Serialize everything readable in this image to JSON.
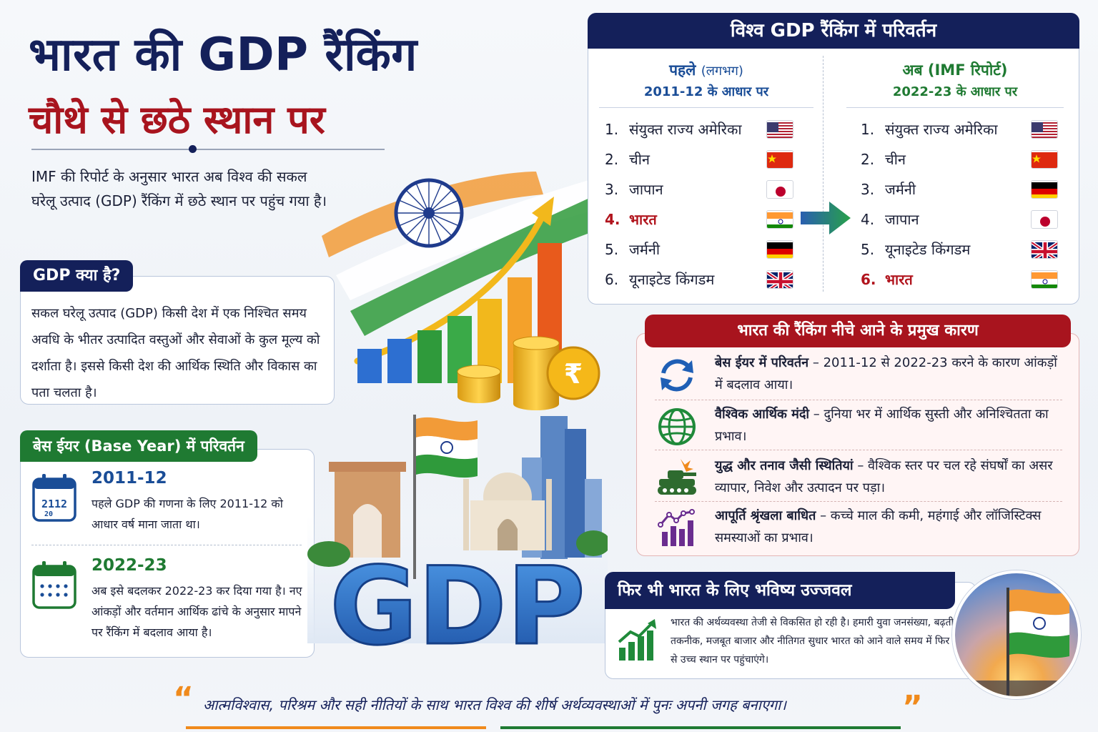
{
  "title": {
    "line1": "भारत की GDP रैंकिंग",
    "line2": "चौथे से छठे स्थान पर"
  },
  "intro": "IMF की रिपोर्ट के अनुसार भारत अब विश्व की सकल घरेलू उत्पाद (GDP) रैंकिंग में छठे स्थान पर पहुंच गया है।",
  "what": {
    "heading": "GDP क्या है?",
    "text": "सकल घरेलू उत्पाद (GDP) किसी देश में एक निश्चित समय अवधि के भीतर उत्पादित वस्तुओं और सेवाओं के कुल मूल्य को दर्शाता है। इससे किसी देश की आर्थिक स्थिति और विकास का पता चलता है।"
  },
  "base_year": {
    "heading": "बेस ईयर (Base Year) में परिवर्तन",
    "items": [
      {
        "year": "2011-12",
        "text": "पहले GDP की गणना के लिए 2011-12 को आधार वर्ष माना जाता था।",
        "icon": "calendar-icon",
        "color": "#1a4d97"
      },
      {
        "year": "2022-23",
        "text": "अब इसे बदलकर 2022-23 कर दिया गया है। नए आंकड़ों और वर्तमान आर्थिक ढांचे के अनुसार मापने पर रैंकिंग में बदलाव आया है।",
        "icon": "calendar-icon",
        "color": "#1f7a32"
      }
    ]
  },
  "illustration": {
    "gdp_text": "GDP",
    "rupee": "₹"
  },
  "ranking": {
    "heading": "विश्व GDP रैंकिंग में परिवर्तन",
    "before": {
      "label": "पहले",
      "qualifier": "(लगभग)",
      "subtitle": "2011-12 के आधार पर",
      "color": "#1a4d97",
      "rows": [
        {
          "num": "1.",
          "country": "संयुक्त राज्य अमेरिका",
          "flag": "usa"
        },
        {
          "num": "2.",
          "country": "चीन",
          "flag": "china"
        },
        {
          "num": "3.",
          "country": "जापान",
          "flag": "japan"
        },
        {
          "num": "4.",
          "country": "भारत",
          "flag": "india",
          "highlight": true
        },
        {
          "num": "5.",
          "country": "जर्मनी",
          "flag": "germany"
        },
        {
          "num": "6.",
          "country": "यूनाइटेड किंगडम",
          "flag": "uk"
        }
      ]
    },
    "after": {
      "label": "अब (IMF रिपोर्ट)",
      "subtitle": "2022-23 के आधार पर",
      "color": "#1f7a32",
      "rows": [
        {
          "num": "1.",
          "country": "संयुक्त राज्य अमेरिका",
          "flag": "usa"
        },
        {
          "num": "2.",
          "country": "चीन",
          "flag": "china"
        },
        {
          "num": "3.",
          "country": "जर्मनी",
          "flag": "germany"
        },
        {
          "num": "4.",
          "country": "जापान",
          "flag": "japan"
        },
        {
          "num": "5.",
          "country": "यूनाइटेड किंगडम",
          "flag": "uk"
        },
        {
          "num": "6.",
          "country": "भारत",
          "flag": "india",
          "highlight": true
        }
      ]
    }
  },
  "reasons": {
    "heading": "भारत की रैंकिंग नीचे आने के प्रमुख कारण",
    "items": [
      {
        "title": "बेस ईयर में परिवर्तन",
        "text": " – 2011-12 से 2022-23 करने के कारण आंकड़ों में बदलाव आया।",
        "icon": "refresh-icon"
      },
      {
        "title": "वैश्विक आर्थिक मंदी",
        "text": " – दुनिया भर में आर्थिक सुस्ती और अनिश्चितता का प्रभाव।",
        "icon": "globe-icon"
      },
      {
        "title": "युद्ध और तनाव जैसी स्थितियां",
        "text": " – वैश्विक स्तर पर चल रहे संघर्षों का असर व्यापार, निवेश और उत्पादन पर पड़ा।",
        "icon": "tank-icon"
      },
      {
        "title": "आपूर्ति श्रृंखला बाधित",
        "text": " – कच्चे माल की कमी, महंगाई और लॉजिस्टिक्स समस्याओं का प्रभाव।",
        "icon": "chart-up-icon"
      }
    ]
  },
  "future": {
    "heading": "फिर भी भारत के लिए भविष्य उज्जवल",
    "text": "भारत की अर्थव्यवस्था तेजी से विकसित हो रही है। हमारी युवा जनसंख्या, बढ़ती तकनीक, मजबूत बाजार और नीतिगत सुधार भारत को आने वाले समय में फिर से उच्च स्थान पर पहुंचाएंगे।",
    "icon": "growth-chart-icon"
  },
  "quote": {
    "open": "“",
    "text": "आत्मविश्वास, परिश्रम और सही नीतियों के साथ भारत विश्व की शीर्ष अर्थव्यवस्थाओं में पुनः अपनी जगह बनाएगा।",
    "close": "”"
  },
  "colors": {
    "navy": "#14205a",
    "red": "#a8141e",
    "green": "#1f7a32",
    "saffron": "#f08a1c"
  }
}
